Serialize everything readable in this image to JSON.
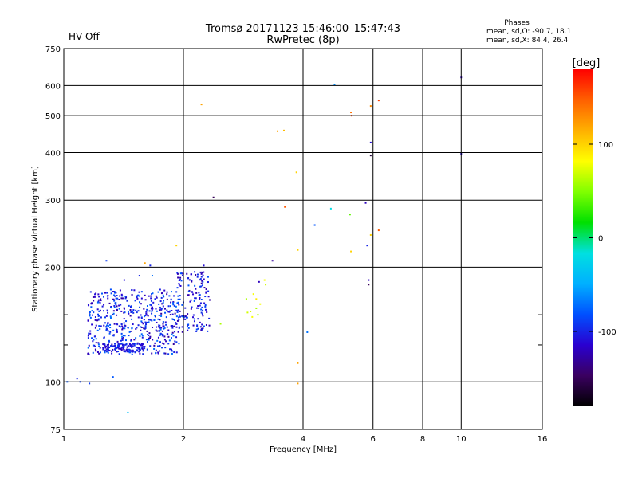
{
  "header": {
    "title_line1": "Tromsø 20171123 15:46:00–15:47:43",
    "title_line2": "RwPretec (8p)",
    "hv_status": "HV Off",
    "phase_title": "Phases",
    "phase_o": "mean, sd,O: -90.7, 18.1",
    "phase_x": "mean, sd,X:  84.4, 26.4"
  },
  "colors": {
    "hv_status": "#cc0000",
    "grid": "#000000",
    "colorbar": [
      "#000000",
      "#3a0060",
      "#2a00d0",
      "#0050ff",
      "#00b0ff",
      "#00e0e0",
      "#00e000",
      "#80ff00",
      "#ffff00",
      "#ffb000",
      "#ff6000",
      "#ff0000"
    ]
  },
  "chart_data": {
    "type": "scatter",
    "title": "",
    "xlabel": "Frequency [MHz]",
    "ylabel": "Stationary phase Virtual Height [km]",
    "xscale": "log",
    "yscale": "log",
    "xlim": [
      1,
      16
    ],
    "ylim": [
      75,
      750
    ],
    "xticks": [
      1,
      2,
      4,
      6,
      8,
      10,
      16
    ],
    "xtick_labels": [
      "1",
      "2",
      "4",
      "6",
      "8",
      "10",
      "16"
    ],
    "yticks": [
      75,
      100,
      200,
      300,
      400,
      500,
      600,
      750
    ],
    "ytick_labels": [
      "75",
      "100",
      "200",
      "300",
      "400",
      "500",
      "600",
      "750"
    ],
    "grid": true,
    "colorbar": {
      "label": "[deg]",
      "range": [
        -180,
        180
      ],
      "ticks": [
        -100,
        0,
        100
      ],
      "tick_labels": [
        "-100",
        "0",
        "100"
      ]
    },
    "series": [
      {
        "points": [
          {
            "x": 2.22,
            "y": 535,
            "phase": 120
          },
          {
            "x": 2.38,
            "y": 305,
            "phase": -150
          },
          {
            "x": 3.45,
            "y": 455,
            "phase": 120
          },
          {
            "x": 3.58,
            "y": 457,
            "phase": 110
          },
          {
            "x": 3.85,
            "y": 355,
            "phase": 100
          },
          {
            "x": 3.6,
            "y": 288,
            "phase": 150
          },
          {
            "x": 3.88,
            "y": 222,
            "phase": 100
          },
          {
            "x": 3.35,
            "y": 208,
            "phase": -130
          },
          {
            "x": 4.28,
            "y": 258,
            "phase": -80
          },
          {
            "x": 4.7,
            "y": 285,
            "phase": -20
          },
          {
            "x": 4.8,
            "y": 603,
            "phase": -60
          },
          {
            "x": 5.25,
            "y": 275,
            "phase": 40
          },
          {
            "x": 5.28,
            "y": 220,
            "phase": 100
          },
          {
            "x": 5.28,
            "y": 510,
            "phase": 140
          },
          {
            "x": 5.3,
            "y": 500,
            "phase": 160
          },
          {
            "x": 5.8,
            "y": 228,
            "phase": -100
          },
          {
            "x": 5.75,
            "y": 295,
            "phase": -120
          },
          {
            "x": 5.92,
            "y": 425,
            "phase": -110
          },
          {
            "x": 5.92,
            "y": 393,
            "phase": -160
          },
          {
            "x": 5.92,
            "y": 530,
            "phase": 130
          },
          {
            "x": 5.92,
            "y": 243,
            "phase": 100
          },
          {
            "x": 5.85,
            "y": 185,
            "phase": -120
          },
          {
            "x": 5.85,
            "y": 180,
            "phase": -150
          },
          {
            "x": 6.2,
            "y": 548,
            "phase": 160
          },
          {
            "x": 6.2,
            "y": 250,
            "phase": 150
          },
          {
            "x": 10.0,
            "y": 630,
            "phase": -120
          },
          {
            "x": 10.0,
            "y": 397,
            "phase": -110
          },
          {
            "x": 4.1,
            "y": 135,
            "phase": -70
          },
          {
            "x": 3.88,
            "y": 112,
            "phase": 120
          },
          {
            "x": 3.88,
            "y": 99,
            "phase": 120
          },
          {
            "x": 3.1,
            "y": 183,
            "phase": -120
          },
          {
            "x": 3.2,
            "y": 185,
            "phase": 80
          },
          {
            "x": 3.22,
            "y": 180,
            "phase": 70
          },
          {
            "x": 3.0,
            "y": 170,
            "phase": 80
          },
          {
            "x": 3.05,
            "y": 165,
            "phase": 90
          },
          {
            "x": 2.88,
            "y": 165,
            "phase": 60
          },
          {
            "x": 2.9,
            "y": 152,
            "phase": 70
          },
          {
            "x": 2.95,
            "y": 153,
            "phase": 70
          },
          {
            "x": 3.05,
            "y": 156,
            "phase": 60
          },
          {
            "x": 3.08,
            "y": 150,
            "phase": 60
          },
          {
            "x": 2.98,
            "y": 148,
            "phase": 80
          },
          {
            "x": 3.12,
            "y": 160,
            "phase": 80
          },
          {
            "x": 2.48,
            "y": 142,
            "phase": 60
          },
          {
            "x": 1.92,
            "y": 228,
            "phase": 100
          },
          {
            "x": 1.82,
            "y": 172,
            "phase": -110
          },
          {
            "x": 1.1,
            "y": 100,
            "phase": -90
          },
          {
            "x": 1.02,
            "y": 100,
            "phase": -80
          },
          {
            "x": 1.08,
            "y": 102,
            "phase": -100
          },
          {
            "x": 1.16,
            "y": 99,
            "phase": -90
          },
          {
            "x": 1.33,
            "y": 103,
            "phase": -80
          },
          {
            "x": 1.45,
            "y": 83,
            "phase": -40
          },
          {
            "x": 1.28,
            "y": 208,
            "phase": -90
          },
          {
            "x": 1.42,
            "y": 185,
            "phase": -110
          },
          {
            "x": 1.55,
            "y": 190,
            "phase": -100
          },
          {
            "x": 1.6,
            "y": 205,
            "phase": 120
          },
          {
            "x": 1.65,
            "y": 202,
            "phase": -100
          },
          {
            "x": 1.67,
            "y": 190,
            "phase": -70
          },
          {
            "x": 2.25,
            "y": 202,
            "phase": -110
          },
          {
            "x": 2.22,
            "y": 192,
            "phase": -120
          }
        ]
      }
    ],
    "clusters": [
      {
        "x": [
          1.15,
          1.95
        ],
        "y": [
          118,
          175
        ],
        "phase": [
          -130,
          -70
        ],
        "count": 520
      },
      {
        "x": [
          1.25,
          1.6
        ],
        "y": [
          120,
          126
        ],
        "phase": [
          -120,
          -90
        ],
        "count": 110
      },
      {
        "x": [
          1.92,
          2.33
        ],
        "y": [
          135,
          195
        ],
        "phase": [
          -130,
          -80
        ],
        "count": 150
      }
    ]
  }
}
